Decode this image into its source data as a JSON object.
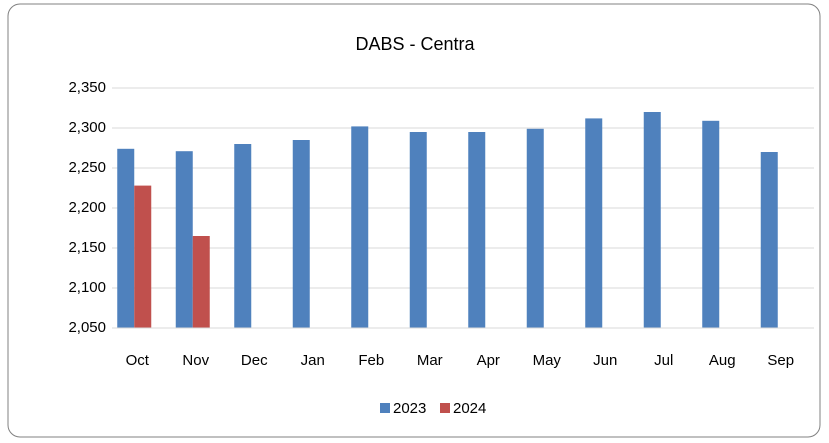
{
  "chart_data": {
    "type": "bar",
    "title": "DABS - Centra",
    "categories": [
      "Oct",
      "Nov",
      "Dec",
      "Jan",
      "Feb",
      "Mar",
      "Apr",
      "May",
      "Jun",
      "Jul",
      "Aug",
      "Sep"
    ],
    "series": [
      {
        "name": "2023",
        "color": "#4f81bd",
        "values": [
          2274,
          2271,
          2280,
          2285,
          2302,
          2295,
          2295,
          2299,
          2312,
          2320,
          2309,
          2270
        ]
      },
      {
        "name": "2024",
        "color": "#c0504d",
        "values": [
          2228,
          2165,
          null,
          null,
          null,
          null,
          null,
          null,
          null,
          null,
          null,
          null
        ]
      }
    ],
    "ylim": [
      2050,
      2350
    ],
    "yticks": [
      {
        "value": 2050,
        "label": "2,050"
      },
      {
        "value": 2100,
        "label": "2,100"
      },
      {
        "value": 2150,
        "label": "2,150"
      },
      {
        "value": 2200,
        "label": "2,200"
      },
      {
        "value": 2250,
        "label": "2,250"
      },
      {
        "value": 2300,
        "label": "2,300"
      },
      {
        "value": 2350,
        "label": "2,350"
      }
    ],
    "grid": true,
    "legend": "bottom"
  }
}
